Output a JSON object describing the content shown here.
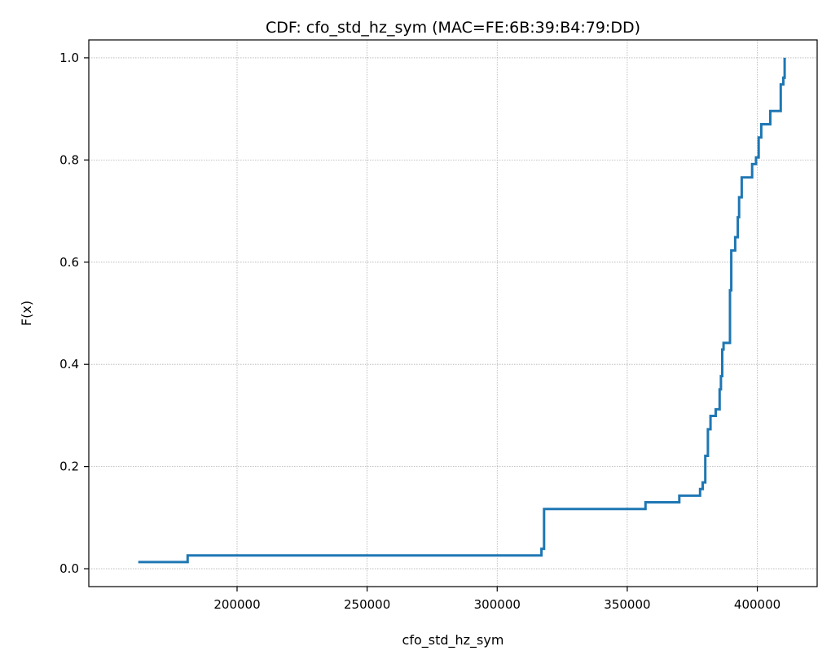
{
  "chart_data": {
    "type": "line",
    "step": true,
    "title": "CDF: cfo_std_hz_sym (MAC=FE:6B:39:B4:79:DD)",
    "xlabel": "cfo_std_hz_sym",
    "ylabel": "F(x)",
    "xlim": [
      143000,
      423000
    ],
    "ylim": [
      -0.035,
      1.035
    ],
    "x_ticks": [
      200000,
      250000,
      300000,
      350000,
      400000
    ],
    "x_tick_labels": [
      "200000",
      "250000",
      "300000",
      "350000",
      "400000"
    ],
    "y_ticks": [
      0.0,
      0.2,
      0.4,
      0.6,
      0.8,
      1.0
    ],
    "y_tick_labels": [
      "0.0",
      "0.2",
      "0.4",
      "0.6",
      "0.8",
      "1.0"
    ],
    "grid": true,
    "series": [
      {
        "color": "#1f77b4",
        "points": [
          [
            162000,
            0.013
          ],
          [
            181000,
            0.026
          ],
          [
            317000,
            0.039
          ],
          [
            318000,
            0.117
          ],
          [
            357000,
            0.13
          ],
          [
            370000,
            0.143
          ],
          [
            378000,
            0.156
          ],
          [
            379000,
            0.169
          ],
          [
            380000,
            0.221
          ],
          [
            381000,
            0.273
          ],
          [
            382000,
            0.299
          ],
          [
            384000,
            0.312
          ],
          [
            385500,
            0.351
          ],
          [
            386000,
            0.377
          ],
          [
            386500,
            0.429
          ],
          [
            387000,
            0.442
          ],
          [
            389500,
            0.545
          ],
          [
            390000,
            0.623
          ],
          [
            391500,
            0.649
          ],
          [
            392500,
            0.688
          ],
          [
            393000,
            0.727
          ],
          [
            394000,
            0.766
          ],
          [
            398000,
            0.792
          ],
          [
            399500,
            0.805
          ],
          [
            400500,
            0.844
          ],
          [
            401500,
            0.87
          ],
          [
            405000,
            0.896
          ],
          [
            409000,
            0.948
          ],
          [
            410000,
            0.961
          ],
          [
            410500,
            1.0
          ]
        ]
      }
    ]
  }
}
